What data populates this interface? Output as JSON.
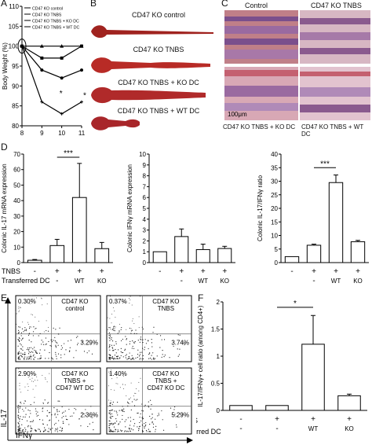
{
  "panel_letters": [
    "A",
    "B",
    "C",
    "D",
    "E",
    "F"
  ],
  "panelA": {
    "ylabel": "Body Weight (%)",
    "xticks": [
      8,
      9,
      10,
      11
    ],
    "yticks": [
      80,
      85,
      90,
      95,
      100,
      105,
      110
    ],
    "legend": [
      "CD47 KO control",
      "CD47 KO TNBS",
      "CD47 KO TNBS + KO DC",
      "CD47 KO TNBS + WT DC"
    ],
    "star": "*"
  },
  "chart_data": [
    {
      "type": "line",
      "x": [
        8,
        9,
        10,
        11
      ],
      "ylim": [
        80,
        110
      ],
      "xlim": [
        8,
        11
      ],
      "ylabel": "Body Weight (%)",
      "series": [
        {
          "name": "CD47 KO control",
          "values": [
            100,
            100,
            100,
            100
          ]
        },
        {
          "name": "CD47 KO TNBS",
          "values": [
            100,
            97,
            97,
            100
          ]
        },
        {
          "name": "CD47 KO TNBS + KO DC",
          "values": [
            100,
            94,
            92,
            94
          ]
        },
        {
          "name": "CD47 KO TNBS + WT DC",
          "values": [
            100,
            86,
            83,
            86
          ]
        }
      ]
    },
    {
      "type": "bar",
      "categories": [
        "1",
        "2",
        "3",
        "4"
      ],
      "values": [
        1.5,
        11,
        42,
        9
      ],
      "errors": [
        0.5,
        4,
        22,
        4
      ],
      "ylabel": "Colonic IL-17 mRNA expression",
      "ylim": [
        0,
        70
      ],
      "yticks": [
        0,
        10,
        20,
        30,
        40,
        50,
        60,
        70
      ]
    },
    {
      "type": "bar",
      "categories": [
        "1",
        "2",
        "3",
        "4"
      ],
      "values": [
        1,
        2.4,
        1.2,
        1.3
      ],
      "errors": [
        0,
        0.7,
        0.5,
        0.2
      ],
      "ylabel": "Colonic IFNγ mRNA expression",
      "ylim": [
        0,
        10
      ],
      "yticks": [
        0,
        1,
        2,
        3,
        4,
        5,
        6,
        7,
        8,
        9,
        10
      ]
    },
    {
      "type": "bar",
      "categories": [
        "1",
        "2",
        "3",
        "4"
      ],
      "values": [
        2.2,
        6.4,
        29.5,
        7.7
      ],
      "errors": [
        0,
        0.4,
        2.8,
        0.5
      ],
      "ylabel": "Colonic IL-17/IFNγ ratio",
      "ylim": [
        0,
        40
      ],
      "yticks": [
        0,
        5,
        10,
        15,
        20,
        25,
        30,
        35,
        40
      ]
    },
    {
      "type": "bar",
      "categories": [
        "1",
        "2",
        "3",
        "4"
      ],
      "values": [
        0.09,
        0.09,
        1.22,
        0.27
      ],
      "errors": [
        0,
        0,
        0.53,
        0.03
      ],
      "ylabel": "IL-17/IFNγ+ cell ratio (among CD4+)",
      "ylim": [
        0,
        2
      ],
      "yticks": [
        0,
        0.5,
        1,
        1.5,
        2
      ]
    }
  ],
  "panelB": {
    "labels": [
      "CD47 KO control",
      "CD47 KO TNBS",
      "CD47 KO TNBS + KO DC",
      "CD47 KO TNBS + WT DC"
    ]
  },
  "panelC": {
    "labels": [
      "Control",
      "CD47 KO TNBS",
      "CD47 KO TNBS + KO DC",
      "CD47 KO TNBS + WT DC"
    ],
    "scalebar": "100μm"
  },
  "panelD": {
    "rowlabels": [
      "TNBS",
      "Transferred DC"
    ],
    "tnbs_marks": [
      "-",
      "+",
      "+",
      "+"
    ],
    "dc_marks": [
      "",
      "-",
      "WT",
      "KO"
    ],
    "star": "***"
  },
  "panelE": {
    "plots": [
      {
        "title": "CD47 KO\ncontrol",
        "ul": "0.30%",
        "lr": "3.29%"
      },
      {
        "title": "CD47 KO\nTNBS",
        "ul": "0.37%",
        "lr": "3.74%"
      },
      {
        "title": "CD47 KO\nTNBS +\nCD47 WT DC",
        "ul": "2.90%",
        "lr": "2.36%"
      },
      {
        "title": "CD47 KO\nTNBS +\nCD47 KO DC",
        "ul": "1.40%",
        "lr": "5.29%"
      }
    ],
    "ylabel": "IL-17",
    "xlabel": "IFNγ"
  },
  "panelF": {
    "rowlabels": [
      "TNBS",
      "Transferred DC"
    ],
    "tnbs_marks": [
      "-",
      "+",
      "+",
      "+"
    ],
    "dc_marks": [
      "-",
      "-",
      "WT",
      "KO"
    ],
    "star": "*"
  },
  "colors": {
    "tissue": "#b5283a",
    "histo": "#c07f88",
    "histo_dark": "#8a5a8e"
  }
}
